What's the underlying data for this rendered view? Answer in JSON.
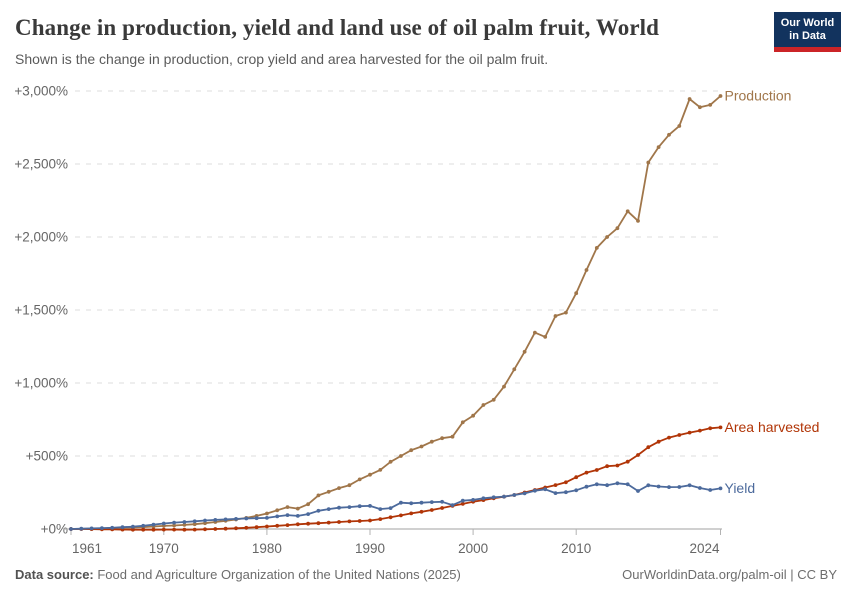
{
  "header": {
    "title": "Change in production, yield and land use of oil palm fruit, World",
    "subtitle": "Shown is the change in production, crop yield and area harvested for the oil palm fruit.",
    "logo": {
      "line1": "Our World",
      "line2": "in Data",
      "bg": "#12335e",
      "stripe": "#cb2427"
    }
  },
  "footer": {
    "source_label": "Data source:",
    "source_text": " Food and Agriculture Organization of the United Nations (2025)",
    "right_text": "OurWorldinData.org/palm-oil | CC BY"
  },
  "chart_data": {
    "type": "line",
    "title": "Change in production, yield and land use of oil palm fruit, World",
    "xlabel": "",
    "ylabel": "",
    "unit": "% change relative to 1961",
    "grid": "horizontal dashed",
    "legend_position": "line-end right labels",
    "ylim": [
      0,
      3000
    ],
    "yticks": [
      0,
      500,
      1000,
      1500,
      2000,
      2500,
      3000
    ],
    "ytick_labels": [
      "+0%",
      "+500%",
      "+1,000%",
      "+1,500%",
      "+2,000%",
      "+2,500%",
      "+3,000%"
    ],
    "xticks": [
      1961,
      1970,
      1980,
      1990,
      2000,
      2010,
      2024
    ],
    "x": [
      1961,
      1962,
      1963,
      1964,
      1965,
      1966,
      1967,
      1968,
      1969,
      1970,
      1971,
      1972,
      1973,
      1974,
      1975,
      1976,
      1977,
      1978,
      1979,
      1980,
      1981,
      1982,
      1983,
      1984,
      1985,
      1986,
      1987,
      1988,
      1989,
      1990,
      1991,
      1992,
      1993,
      1994,
      1995,
      1996,
      1997,
      1998,
      1999,
      2000,
      2001,
      2002,
      2003,
      2004,
      2005,
      2006,
      2007,
      2008,
      2009,
      2010,
      2011,
      2012,
      2013,
      2014,
      2015,
      2016,
      2017,
      2018,
      2019,
      2020,
      2021,
      2022,
      2023,
      2024
    ],
    "series": [
      {
        "name": "Production",
        "color": "#a0764a",
        "values": [
          0,
          1,
          2,
          4,
          6,
          8,
          10,
          13,
          17,
          21,
          24,
          28,
          33,
          40,
          48,
          56,
          65,
          76,
          90,
          106,
          128,
          150,
          140,
          170,
          230,
          255,
          280,
          300,
          340,
          372,
          405,
          460,
          500,
          540,
          565,
          598,
          622,
          632,
          731,
          776,
          849,
          885,
          975,
          1094,
          1214,
          1345,
          1316,
          1459,
          1482,
          1615,
          1774,
          1925,
          2000,
          2060,
          2176,
          2110,
          2510,
          2616,
          2700,
          2760,
          2945,
          2889,
          2905,
          2966
        ]
      },
      {
        "name": "Area harvested",
        "color": "#b13507",
        "values": [
          0,
          0,
          -1,
          -2,
          -3,
          -4,
          -5,
          -5,
          -5,
          -4,
          -4,
          -5,
          -4,
          -2,
          0,
          2,
          5,
          8,
          12,
          17,
          22,
          27,
          32,
          36,
          40,
          44,
          48,
          52,
          55,
          58,
          68,
          80,
          93,
          107,
          118,
          130,
          144,
          158,
          172,
          187,
          198,
          210,
          221,
          233,
          250,
          267,
          284,
          301,
          320,
          355,
          386,
          404,
          430,
          435,
          461,
          507,
          560,
          598,
          626,
          644,
          660,
          674,
          690,
          696
        ]
      },
      {
        "name": "Yield",
        "color": "#4c6a9c",
        "values": [
          0,
          2,
          4,
          6,
          8,
          12,
          16,
          22,
          30,
          38,
          44,
          48,
          53,
          58,
          62,
          66,
          69,
          72,
          74,
          76,
          86,
          95,
          90,
          102,
          125,
          136,
          146,
          150,
          156,
          158,
          136,
          143,
          180,
          176,
          180,
          184,
          186,
          164,
          194,
          199,
          210,
          217,
          222,
          233,
          244,
          262,
          272,
          246,
          252,
          265,
          290,
          306,
          300,
          313,
          306,
          260,
          299,
          291,
          287,
          288,
          299,
          281,
          267,
          278
        ]
      }
    ]
  }
}
